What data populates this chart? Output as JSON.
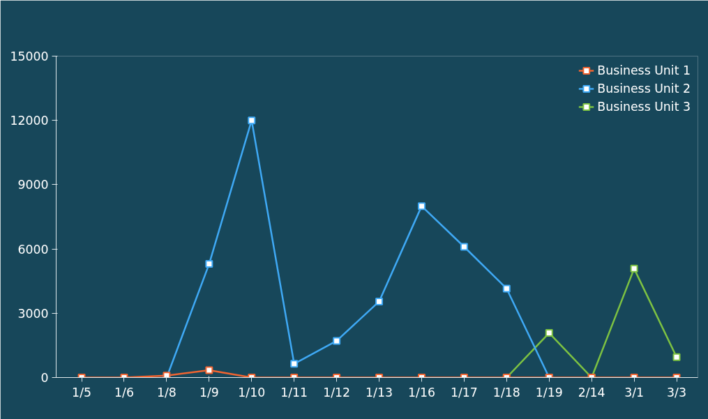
{
  "chart_data": {
    "type": "line",
    "categories": [
      "1/5",
      "1/6",
      "1/8",
      "1/9",
      "1/10",
      "1/11",
      "1/12",
      "1/13",
      "1/16",
      "1/17",
      "1/18",
      "1/19",
      "2/14",
      "3/1",
      "3/3"
    ],
    "series": [
      {
        "name": "Business Unit 1",
        "color": "#f26430",
        "values": [
          0,
          0,
          90,
          340,
          0,
          0,
          0,
          0,
          0,
          0,
          0,
          0,
          0,
          0,
          0
        ]
      },
      {
        "name": "Business Unit 2",
        "color": "#3fa9f5",
        "values": [
          null,
          null,
          0,
          5300,
          12000,
          640,
          1710,
          3550,
          8000,
          6100,
          4150,
          0,
          null,
          null,
          null
        ]
      },
      {
        "name": "Business Unit 3",
        "color": "#7dc242",
        "values": [
          null,
          null,
          null,
          null,
          null,
          null,
          null,
          null,
          null,
          null,
          0,
          2080,
          0,
          5080,
          950
        ]
      }
    ],
    "ylim": [
      0,
      15000
    ],
    "yticks": [
      0,
      3000,
      6000,
      9000,
      12000,
      15000
    ],
    "grid": false,
    "legend": "top right",
    "marker": "square",
    "line_style": "solid"
  }
}
